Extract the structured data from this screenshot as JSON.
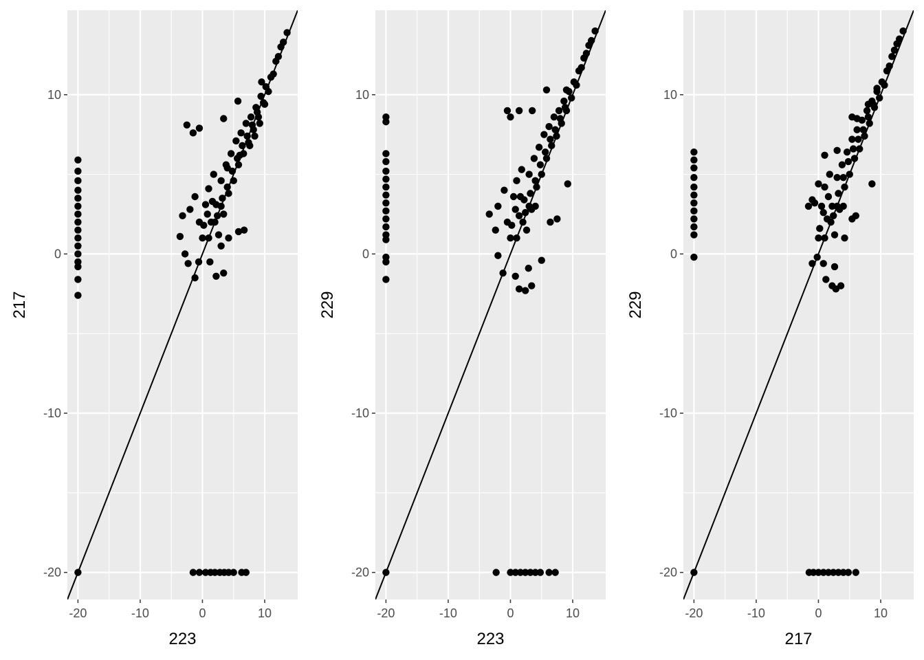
{
  "chart_data": [
    {
      "type": "scatter",
      "xlabel": "223",
      "ylabel": "217",
      "xlim": [
        -21.7,
        15.3
      ],
      "ylim": [
        -21.7,
        15.3
      ],
      "x_ticks": [
        -20,
        -10,
        0,
        10
      ],
      "y_ticks": [
        -20,
        -10,
        0,
        10
      ],
      "reference_line": "y = x",
      "grid": true,
      "points": [
        [
          -20,
          5.9
        ],
        [
          -20,
          5.2
        ],
        [
          -20,
          4.6
        ],
        [
          -20,
          4.0
        ],
        [
          -20,
          3.5
        ],
        [
          -20,
          3.0
        ],
        [
          -20,
          2.5
        ],
        [
          -20,
          2.0
        ],
        [
          -20,
          1.5
        ],
        [
          -20,
          1.0
        ],
        [
          -20,
          0.5
        ],
        [
          -20,
          0.0
        ],
        [
          -20,
          -0.5
        ],
        [
          -20,
          -0.8
        ],
        [
          -20,
          -1.6
        ],
        [
          -20,
          -2.6
        ],
        [
          -20,
          -20
        ],
        [
          -1.5,
          -20
        ],
        [
          -0.5,
          -20
        ],
        [
          0.5,
          -20
        ],
        [
          1.3,
          -20
        ],
        [
          2.0,
          -20
        ],
        [
          2.8,
          -20
        ],
        [
          3.5,
          -20
        ],
        [
          4.2,
          -20
        ],
        [
          5.0,
          -20
        ],
        [
          6.3,
          -20
        ],
        [
          7.0,
          -20
        ],
        [
          -2.5,
          8.1
        ],
        [
          -1.5,
          7.6
        ],
        [
          -0.5,
          7.9
        ],
        [
          3.4,
          8.5
        ],
        [
          5.7,
          9.6
        ],
        [
          9.5,
          10.8
        ],
        [
          -3.2,
          2.4
        ],
        [
          -3.6,
          1.1
        ],
        [
          -2.8,
          0.0
        ],
        [
          -2.3,
          -0.6
        ],
        [
          -1.2,
          -1.5
        ],
        [
          -0.6,
          -0.5
        ],
        [
          1.2,
          -0.5
        ],
        [
          2.2,
          -1.4
        ],
        [
          3.4,
          -1.2
        ],
        [
          3.0,
          0.5
        ],
        [
          4.2,
          1.0
        ],
        [
          5.8,
          1.4
        ],
        [
          6.7,
          1.5
        ],
        [
          -2.0,
          2.8
        ],
        [
          -1.2,
          3.6
        ],
        [
          -0.5,
          2.0
        ],
        [
          0.0,
          1.0
        ],
        [
          0.5,
          3.1
        ],
        [
          1.0,
          4.1
        ],
        [
          1.4,
          2.0
        ],
        [
          1.8,
          5.0
        ],
        [
          2.2,
          3.1
        ],
        [
          2.6,
          1.2
        ],
        [
          3.0,
          4.6
        ],
        [
          3.4,
          2.5
        ],
        [
          3.8,
          5.6
        ],
        [
          4.2,
          3.8
        ],
        [
          4.6,
          6.3
        ],
        [
          5.0,
          4.6
        ],
        [
          5.4,
          7.1
        ],
        [
          5.8,
          5.6
        ],
        [
          6.2,
          7.6
        ],
        [
          6.6,
          6.3
        ],
        [
          7.0,
          8.2
        ],
        [
          7.4,
          7.0
        ],
        [
          7.8,
          8.6
        ],
        [
          8.2,
          7.8
        ],
        [
          8.6,
          9.2
        ],
        [
          9.0,
          8.6
        ],
        [
          9.4,
          9.9
        ],
        [
          9.8,
          9.5
        ],
        [
          10.2,
          10.5
        ],
        [
          10.6,
          10.2
        ],
        [
          11.0,
          11.1
        ],
        [
          11.4,
          11.3
        ],
        [
          11.8,
          12.1
        ],
        [
          12.2,
          12.4
        ],
        [
          12.6,
          13.0
        ],
        [
          13.0,
          13.3
        ],
        [
          13.6,
          13.9
        ],
        [
          0.2,
          1.8
        ],
        [
          0.8,
          2.5
        ],
        [
          1.6,
          3.3
        ],
        [
          2.4,
          2.4
        ],
        [
          3.2,
          3.5
        ],
        [
          4.0,
          4.2
        ],
        [
          4.8,
          5.2
        ],
        [
          5.6,
          6.0
        ],
        [
          6.4,
          6.8
        ],
        [
          7.2,
          7.4
        ],
        [
          8.0,
          8.1
        ],
        [
          8.8,
          8.9
        ],
        [
          1.0,
          1.0
        ],
        [
          2.0,
          2.0
        ],
        [
          3.0,
          3.0
        ],
        [
          4.0,
          5.4
        ],
        [
          6.0,
          6.2
        ],
        [
          7.6,
          6.8
        ],
        [
          8.4,
          7.4
        ],
        [
          9.2,
          8.2
        ],
        [
          10.0,
          9.4
        ]
      ]
    },
    {
      "type": "scatter",
      "xlabel": "223",
      "ylabel": "229",
      "xlim": [
        -21.7,
        15.3
      ],
      "ylim": [
        -21.7,
        15.3
      ],
      "x_ticks": [
        -20,
        -10,
        0,
        10
      ],
      "y_ticks": [
        -20,
        -10,
        0,
        10
      ],
      "reference_line": "y = x",
      "grid": true,
      "points": [
        [
          -20,
          8.6
        ],
        [
          -20,
          8.3
        ],
        [
          -20,
          6.3
        ],
        [
          -20,
          5.8
        ],
        [
          -20,
          5.2
        ],
        [
          -20,
          4.7
        ],
        [
          -20,
          4.2
        ],
        [
          -20,
          3.7
        ],
        [
          -20,
          3.2
        ],
        [
          -20,
          2.7
        ],
        [
          -20,
          2.2
        ],
        [
          -20,
          1.7
        ],
        [
          -20,
          1.2
        ],
        [
          -20,
          0.9
        ],
        [
          -20,
          -0.2
        ],
        [
          -20,
          -0.5
        ],
        [
          -20,
          -1.6
        ],
        [
          -20,
          -20
        ],
        [
          -2.3,
          -20
        ],
        [
          0.0,
          -20
        ],
        [
          0.8,
          -20
        ],
        [
          1.6,
          -20
        ],
        [
          2.4,
          -20
        ],
        [
          3.2,
          -20
        ],
        [
          4.0,
          -20
        ],
        [
          4.8,
          -20
        ],
        [
          6.2,
          -20
        ],
        [
          7.2,
          -20
        ],
        [
          -0.5,
          9.0
        ],
        [
          1.4,
          9.0
        ],
        [
          0.0,
          8.6
        ],
        [
          3.5,
          9.0
        ],
        [
          5.8,
          10.3
        ],
        [
          9.0,
          10.3
        ],
        [
          -3.4,
          2.5
        ],
        [
          -2.4,
          1.5
        ],
        [
          -2.0,
          -0.1
        ],
        [
          -1.2,
          -1.2
        ],
        [
          0.8,
          -1.4
        ],
        [
          1.4,
          -2.2
        ],
        [
          2.4,
          -2.3
        ],
        [
          3.4,
          -2.0
        ],
        [
          2.9,
          -0.9
        ],
        [
          5.0,
          -0.4
        ],
        [
          6.4,
          2.0
        ],
        [
          7.5,
          2.2
        ],
        [
          9.2,
          4.4
        ],
        [
          4.0,
          3.0
        ],
        [
          -2.0,
          3.0
        ],
        [
          -1.0,
          4.0
        ],
        [
          -0.5,
          2.0
        ],
        [
          0.0,
          1.0
        ],
        [
          0.5,
          3.6
        ],
        [
          1.0,
          4.6
        ],
        [
          1.4,
          2.4
        ],
        [
          1.8,
          5.3
        ],
        [
          2.2,
          3.4
        ],
        [
          2.6,
          1.5
        ],
        [
          3.0,
          5.0
        ],
        [
          3.4,
          2.8
        ],
        [
          3.8,
          6.0
        ],
        [
          4.2,
          4.2
        ],
        [
          4.6,
          6.7
        ],
        [
          5.0,
          5.0
        ],
        [
          5.4,
          7.5
        ],
        [
          5.8,
          6.0
        ],
        [
          6.2,
          8.0
        ],
        [
          6.6,
          6.8
        ],
        [
          7.0,
          8.6
        ],
        [
          7.4,
          7.4
        ],
        [
          7.8,
          9.0
        ],
        [
          8.2,
          8.2
        ],
        [
          8.6,
          9.6
        ],
        [
          9.0,
          9.0
        ],
        [
          9.4,
          10.2
        ],
        [
          9.8,
          9.8
        ],
        [
          10.2,
          10.8
        ],
        [
          10.6,
          10.6
        ],
        [
          11.0,
          11.5
        ],
        [
          11.4,
          11.7
        ],
        [
          11.8,
          12.3
        ],
        [
          12.2,
          12.6
        ],
        [
          12.6,
          13.1
        ],
        [
          13.0,
          13.4
        ],
        [
          13.6,
          14.0
        ],
        [
          0.2,
          1.8
        ],
        [
          0.8,
          2.8
        ],
        [
          1.6,
          3.6
        ],
        [
          2.4,
          2.6
        ],
        [
          3.2,
          3.8
        ],
        [
          4.0,
          4.6
        ],
        [
          4.8,
          5.6
        ],
        [
          5.6,
          6.4
        ],
        [
          6.4,
          7.2
        ],
        [
          7.2,
          7.8
        ],
        [
          8.0,
          8.5
        ],
        [
          8.8,
          9.2
        ],
        [
          1.0,
          1.0
        ],
        [
          2.0,
          2.0
        ],
        [
          3.0,
          3.0
        ]
      ]
    },
    {
      "type": "scatter",
      "xlabel": "217",
      "ylabel": "229",
      "xlim": [
        -21.7,
        15.3
      ],
      "ylim": [
        -21.7,
        15.3
      ],
      "x_ticks": [
        -20,
        -10,
        0,
        10
      ],
      "y_ticks": [
        -20,
        -10,
        0,
        10
      ],
      "reference_line": "y = x",
      "grid": true,
      "points": [
        [
          -20,
          6.4
        ],
        [
          -20,
          5.9
        ],
        [
          -20,
          5.4
        ],
        [
          -20,
          4.8
        ],
        [
          -20,
          4.2
        ],
        [
          -20,
          3.7
        ],
        [
          -20,
          3.2
        ],
        [
          -20,
          2.7
        ],
        [
          -20,
          2.2
        ],
        [
          -20,
          1.7
        ],
        [
          -20,
          1.2
        ],
        [
          -20,
          -0.2
        ],
        [
          -20,
          -20
        ],
        [
          -1.5,
          -20
        ],
        [
          -0.8,
          -20
        ],
        [
          0.0,
          -20
        ],
        [
          0.8,
          -20
        ],
        [
          1.6,
          -20
        ],
        [
          2.4,
          -20
        ],
        [
          3.2,
          -20
        ],
        [
          4.0,
          -20
        ],
        [
          4.8,
          -20
        ],
        [
          6.0,
          -20
        ],
        [
          -1.0,
          3.4
        ],
        [
          -1.6,
          3.0
        ],
        [
          -0.6,
          3.2
        ],
        [
          0.0,
          4.4
        ],
        [
          1.0,
          6.2
        ],
        [
          3.0,
          6.5
        ],
        [
          5.4,
          8.6
        ],
        [
          6.2,
          8.5
        ],
        [
          8.0,
          9.4
        ],
        [
          9.4,
          10.4
        ],
        [
          -1.0,
          -0.6
        ],
        [
          -0.2,
          -0.2
        ],
        [
          0.8,
          -0.6
        ],
        [
          1.2,
          -1.6
        ],
        [
          2.2,
          -2.0
        ],
        [
          2.8,
          -2.2
        ],
        [
          3.6,
          -2.0
        ],
        [
          2.6,
          -0.8
        ],
        [
          4.2,
          1.0
        ],
        [
          5.4,
          2.2
        ],
        [
          6.0,
          2.4
        ],
        [
          8.6,
          4.4
        ],
        [
          4.0,
          3.0
        ],
        [
          0.0,
          1.0
        ],
        [
          0.5,
          3.0
        ],
        [
          1.0,
          4.2
        ],
        [
          1.4,
          2.2
        ],
        [
          1.8,
          5.0
        ],
        [
          2.2,
          3.0
        ],
        [
          2.6,
          1.2
        ],
        [
          3.0,
          4.8
        ],
        [
          3.4,
          2.8
        ],
        [
          3.8,
          5.6
        ],
        [
          4.2,
          4.2
        ],
        [
          4.6,
          6.4
        ],
        [
          5.0,
          5.0
        ],
        [
          5.4,
          7.2
        ],
        [
          5.8,
          6.0
        ],
        [
          6.2,
          7.8
        ],
        [
          6.6,
          6.6
        ],
        [
          7.0,
          8.4
        ],
        [
          7.4,
          7.4
        ],
        [
          7.8,
          9.0
        ],
        [
          8.2,
          8.2
        ],
        [
          8.6,
          9.6
        ],
        [
          9.0,
          9.2
        ],
        [
          9.4,
          10.2
        ],
        [
          9.8,
          9.8
        ],
        [
          10.2,
          10.8
        ],
        [
          10.6,
          10.6
        ],
        [
          11.0,
          11.5
        ],
        [
          11.4,
          11.8
        ],
        [
          11.8,
          12.4
        ],
        [
          12.2,
          12.8
        ],
        [
          12.6,
          13.2
        ],
        [
          13.0,
          13.5
        ],
        [
          13.6,
          14.0
        ],
        [
          0.2,
          1.6
        ],
        [
          0.8,
          2.6
        ],
        [
          1.6,
          3.6
        ],
        [
          2.4,
          2.4
        ],
        [
          3.2,
          3.8
        ],
        [
          4.0,
          4.8
        ],
        [
          4.8,
          5.8
        ],
        [
          5.6,
          6.6
        ],
        [
          6.4,
          7.2
        ],
        [
          7.2,
          7.8
        ],
        [
          8.0,
          8.6
        ],
        [
          8.8,
          9.4
        ],
        [
          1.0,
          1.0
        ],
        [
          2.0,
          2.0
        ],
        [
          3.0,
          3.0
        ]
      ]
    }
  ]
}
